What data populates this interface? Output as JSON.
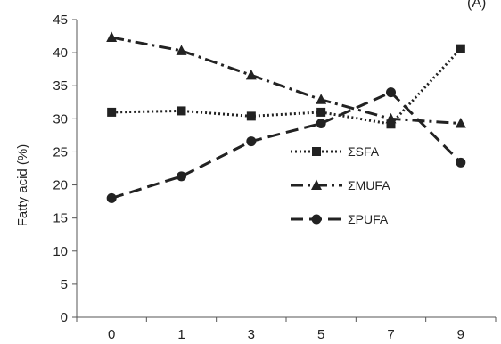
{
  "chart_data": {
    "type": "line",
    "title": "",
    "corner_label": "(A)",
    "xlabel": "",
    "ylabel": "Fatty acid (%)",
    "ylim": [
      0,
      45
    ],
    "yticks": [
      0,
      5,
      10,
      15,
      20,
      25,
      30,
      35,
      40,
      45
    ],
    "categories": [
      "0",
      "1",
      "3",
      "5",
      "7",
      "9"
    ],
    "grid": false,
    "legend_position": "center-right",
    "series": [
      {
        "name": "ΣSFA",
        "marker": "square",
        "dash": "dotted",
        "color": "#222222",
        "values": [
          31.0,
          31.2,
          30.4,
          31.0,
          29.2,
          40.6
        ]
      },
      {
        "name": "ΣMUFA",
        "marker": "triangle",
        "dash": "dash-dot",
        "color": "#222222",
        "values": [
          42.3,
          40.3,
          36.6,
          32.9,
          30.0,
          29.3
        ]
      },
      {
        "name": "ΣPUFA",
        "marker": "circle",
        "dash": "long-dash",
        "color": "#222222",
        "values": [
          18.0,
          21.3,
          26.6,
          29.3,
          34.0,
          23.4
        ]
      }
    ]
  }
}
